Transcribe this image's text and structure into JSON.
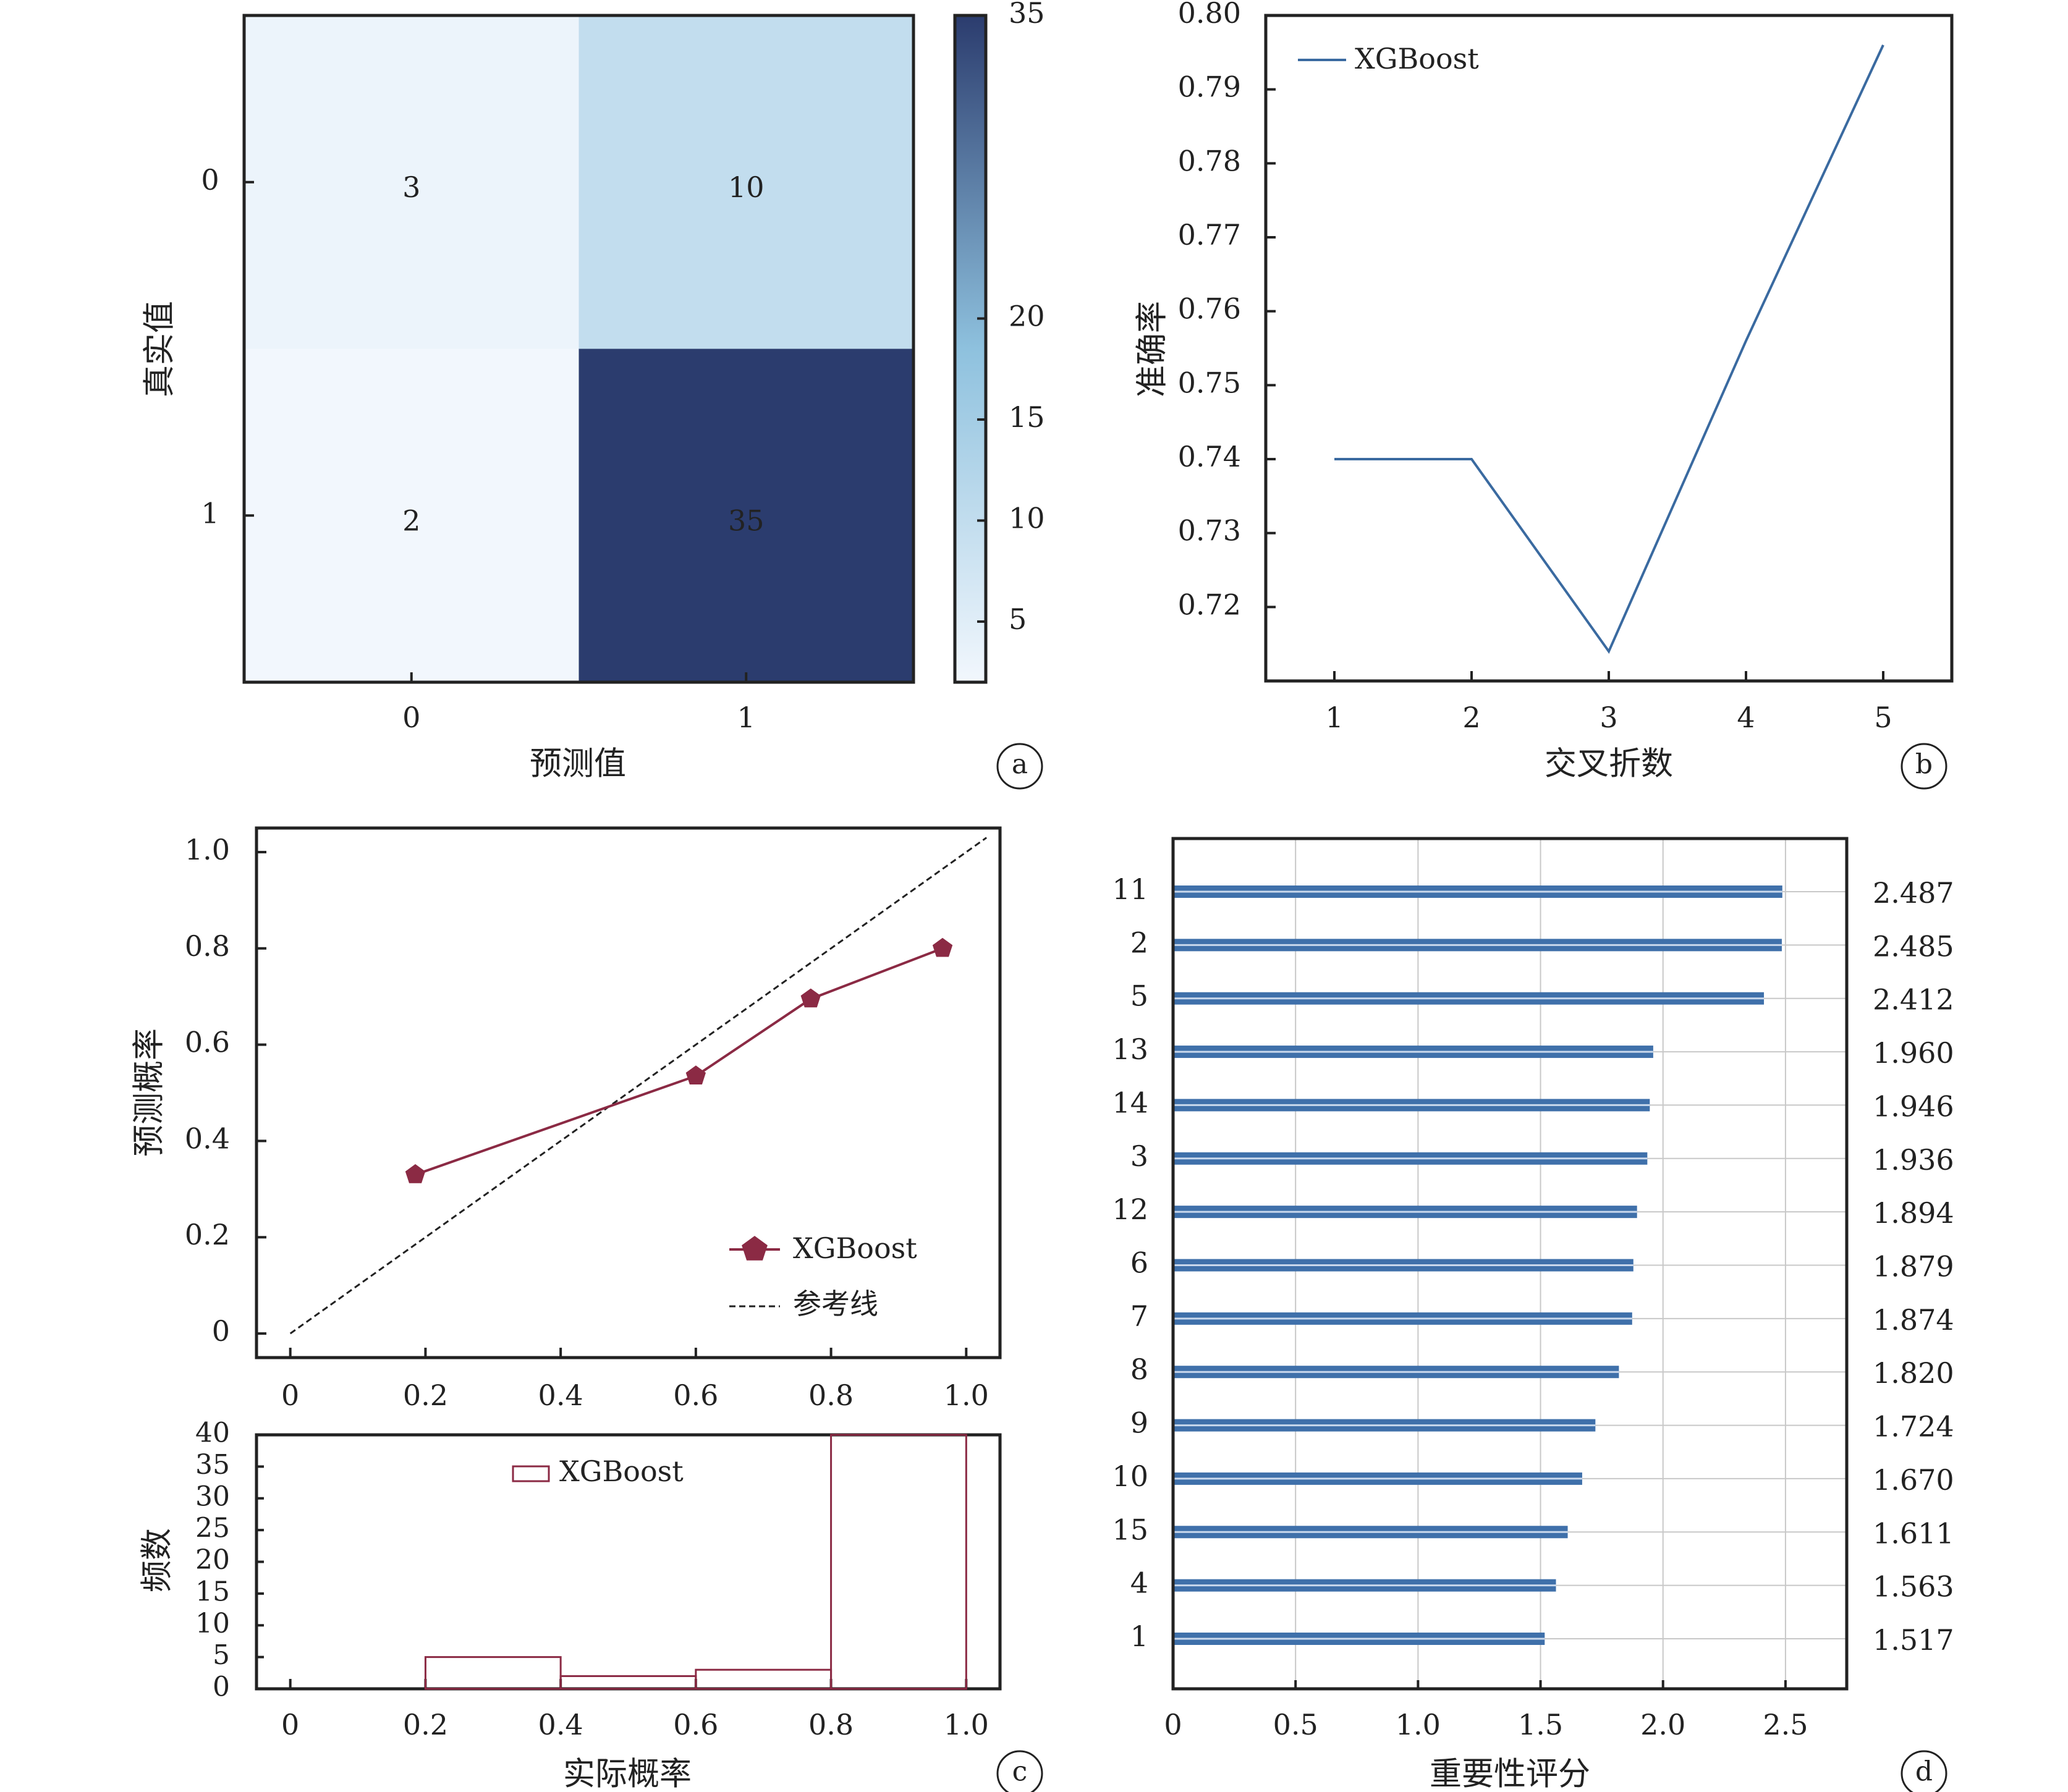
{
  "chart_data": [
    {
      "panel": "a",
      "type": "heatmap",
      "xlabel": "预测值",
      "ylabel": "真实值",
      "x_categories": [
        "0",
        "1"
      ],
      "y_categories": [
        "0",
        "1"
      ],
      "matrix": [
        [
          3,
          10
        ],
        [
          2,
          35
        ]
      ],
      "colorbar": {
        "ticks": [
          5,
          10,
          15,
          20,
          35
        ],
        "range": [
          2,
          35
        ],
        "colors": [
          "#f2f7fd",
          "#8ec1de",
          "#2b3c6e"
        ]
      },
      "panel_label": "a"
    },
    {
      "panel": "b",
      "type": "line",
      "xlabel": "交叉折数",
      "ylabel": "准确率",
      "x": [
        1,
        2,
        3,
        4,
        5
      ],
      "series": [
        {
          "name": "XGBoost",
          "values": [
            0.74,
            0.74,
            0.714,
            0.756,
            0.796
          ],
          "color": "#3a6aa0"
        }
      ],
      "xlim": [
        0.5,
        5.5
      ],
      "ylim": [
        0.71,
        0.8
      ],
      "yticks": [
        "0.72",
        "0.73",
        "0.74",
        "0.75",
        "0.76",
        "0.77",
        "0.78",
        "0.79",
        "0.80"
      ],
      "legend": "top-left",
      "panel_label": "b"
    },
    {
      "panel": "c-top",
      "type": "line",
      "ylabel": "预测概率",
      "xlim": [
        -0.05,
        1.05
      ],
      "ylim": [
        -0.05,
        1.05
      ],
      "xticks": [
        "0",
        "0.2",
        "0.4",
        "0.6",
        "0.8",
        "1.0"
      ],
      "yticks": [
        "0",
        "0.2",
        "0.4",
        "0.6",
        "0.8",
        "1.0"
      ],
      "series": [
        {
          "name": "XGBoost",
          "x": [
            0.185,
            0.6,
            0.77,
            0.965
          ],
          "y": [
            0.33,
            0.535,
            0.695,
            0.8
          ],
          "color": "#8b2a44",
          "marker": "pentagon"
        },
        {
          "name": "参考线",
          "x": [
            0,
            1.03
          ],
          "y": [
            0,
            1.03
          ],
          "style": "dashed",
          "color": "#222222"
        }
      ],
      "legend": "bottom-right"
    },
    {
      "panel": "c-bottom",
      "type": "bar",
      "xlabel": "实际概率",
      "ylabel": "频数",
      "bins": [
        [
          0,
          0.2
        ],
        [
          0.2,
          0.4
        ],
        [
          0.4,
          0.6
        ],
        [
          0.6,
          0.8
        ],
        [
          0.8,
          1.0
        ]
      ],
      "series": [
        {
          "name": "XGBoost",
          "values": [
            0,
            5,
            2,
            3,
            40
          ],
          "color": "#8b2a44"
        }
      ],
      "xticks": [
        "0",
        "0.2",
        "0.4",
        "0.6",
        "0.8",
        "1.0"
      ],
      "yticks": [
        "0",
        "5",
        "10",
        "15",
        "20",
        "25",
        "30",
        "35",
        "40"
      ],
      "ylim": [
        0,
        40
      ],
      "legend": "top-center",
      "panel_label": "c"
    },
    {
      "panel": "d",
      "type": "bar",
      "orientation": "horizontal",
      "xlabel": "重要性评分",
      "categories": [
        "11",
        "2",
        "5",
        "13",
        "14",
        "3",
        "12",
        "6",
        "7",
        "8",
        "9",
        "10",
        "15",
        "4",
        "1"
      ],
      "values": [
        2.487,
        2.485,
        2.412,
        1.96,
        1.946,
        1.936,
        1.894,
        1.879,
        1.874,
        1.82,
        1.724,
        1.67,
        1.611,
        1.563,
        1.517
      ],
      "value_labels": [
        "2.487",
        "2.485",
        "2.412",
        "1.960",
        "1.946",
        "1.936",
        "1.894",
        "1.879",
        "1.874",
        "1.820",
        "1.724",
        "1.670",
        "1.611",
        "1.563",
        "1.517"
      ],
      "xticks": [
        "0",
        "0.5",
        "1.0",
        "1.5",
        "2.0",
        "2.5"
      ],
      "xlim": [
        0,
        2.75
      ],
      "color": "#3f70aa",
      "grid": true,
      "panel_label": "d"
    }
  ]
}
